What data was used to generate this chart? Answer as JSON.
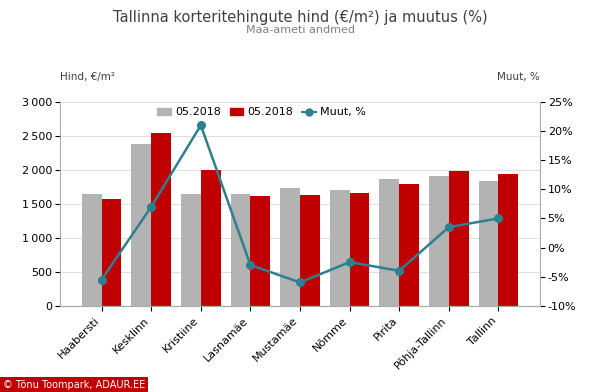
{
  "title": "Tallinna korteritehingute hind (€/m²) ja muutus (%)",
  "subtitle": "Maa-ameti andmed",
  "ylabel_left": "Hind, €/m²",
  "ylabel_right": "Muut, %",
  "legend_gray": "05.2018",
  "legend_red": "05.2018",
  "legend_line": "Muut, %",
  "categories": [
    "Haabersti",
    "Kesklinn",
    "Kristiine",
    "Lasnamäe",
    "Mustamäe",
    "Nõmme",
    "Pirita",
    "Põhja-Tallinn",
    "Tallinn"
  ],
  "values_gray": [
    1650,
    2380,
    1650,
    1650,
    1730,
    1700,
    1870,
    1910,
    1840
  ],
  "values_red": [
    1570,
    2540,
    2000,
    1620,
    1630,
    1660,
    1790,
    1980,
    1940
  ],
  "values_line": [
    -5.5,
    7.0,
    21.0,
    -3.0,
    -6.0,
    -2.5,
    -4.0,
    3.5,
    5.0
  ],
  "ylim_left": [
    0,
    3000
  ],
  "ylim_right": [
    -10,
    25
  ],
  "yticks_left": [
    0,
    500,
    1000,
    1500,
    2000,
    2500,
    3000
  ],
  "yticks_right": [
    -10,
    -5,
    0,
    5,
    10,
    15,
    20,
    25
  ],
  "color_gray": "#b3b3b3",
  "color_red": "#c00000",
  "color_line": "#2e7f8f",
  "color_title": "#404040",
  "color_subtitle": "#808080",
  "background_color": "#ffffff",
  "copyright_text": "© Tõnu Toompark, ADAUR.EE",
  "bar_width": 0.4,
  "logo_bg": "#c00000"
}
